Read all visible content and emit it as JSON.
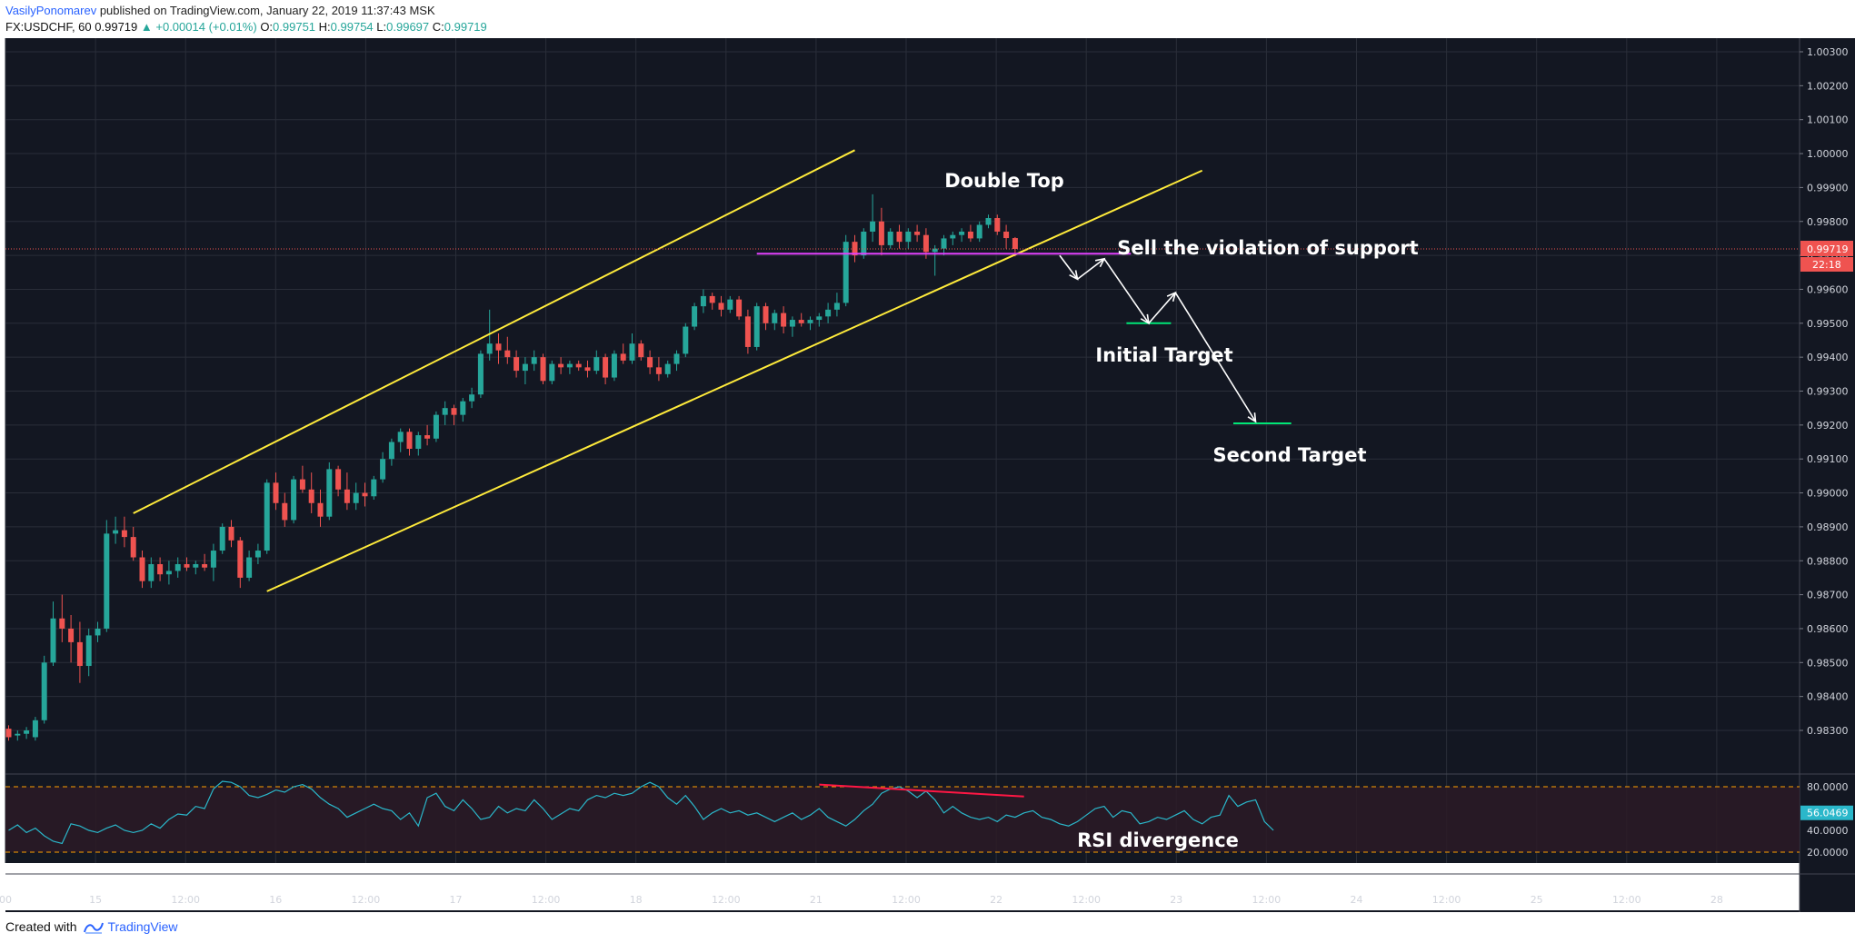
{
  "header": {
    "author": "VasilyPonomarev",
    "published": "published on TradingView.com, January 22, 2019 11:37:43 MSK",
    "symbol": "FX:USDCHF, 60",
    "last": "0.99719",
    "change": "▲ +0.00014 (+0.01%)",
    "o_label": "O:",
    "o_value": "0.99751",
    "h_label": "H:",
    "h_value": "0.99754",
    "l_label": "L:",
    "l_value": "0.99697",
    "c_label": "C:",
    "c_value": "0.99719"
  },
  "footer": {
    "created_with": "Created with",
    "brand": "TradingView",
    "logo_icon": "tradingview-logo-icon"
  },
  "colors": {
    "background": "#131722",
    "grid": "#2a2e39",
    "up": "#26a69a",
    "down": "#ef5350",
    "channel": "#ffeb3b",
    "support": "#e040fb",
    "target": "#00e676",
    "arrow": "#ffffff",
    "rsi": "#2ab7ca",
    "rsi_band": "#2b1a26",
    "rsi_levels": "#ffa000",
    "divergence": "#ff1744"
  },
  "chart_data": {
    "type": "candlestick",
    "symbol": "FX:USDCHF, 60",
    "x_ticks": [
      "00",
      "15",
      "12:00",
      "16",
      "12:00",
      "17",
      "12:00",
      "18",
      "12:00",
      "21",
      "12:00",
      "22",
      "12:00",
      "23",
      "12:00",
      "24",
      "12:00",
      "25",
      "12:00",
      "28"
    ],
    "y_ticks": [
      "1.00300",
      "1.00200",
      "1.00100",
      "1.00000",
      "0.99900",
      "0.99800",
      "0.99700",
      "0.99600",
      "0.99500",
      "0.99400",
      "0.99300",
      "0.99200",
      "0.99100",
      "0.99000",
      "0.98900",
      "0.98800",
      "0.98700",
      "0.98600",
      "0.98500",
      "0.98400",
      "0.98300"
    ],
    "ylim": [
      0.9825,
      1.0033
    ],
    "price_label": "0.99719",
    "countdown_label": "22:18",
    "candles": [
      {
        "o": 0.98305,
        "h": 0.98315,
        "l": 0.9827,
        "c": 0.9828
      },
      {
        "o": 0.98285,
        "h": 0.983,
        "l": 0.9827,
        "c": 0.9829
      },
      {
        "o": 0.9829,
        "h": 0.9831,
        "l": 0.98275,
        "c": 0.983
      },
      {
        "o": 0.9828,
        "h": 0.9834,
        "l": 0.9827,
        "c": 0.9833
      },
      {
        "o": 0.9833,
        "h": 0.9852,
        "l": 0.9832,
        "c": 0.985
      },
      {
        "o": 0.985,
        "h": 0.9868,
        "l": 0.9849,
        "c": 0.9863
      },
      {
        "o": 0.9863,
        "h": 0.987,
        "l": 0.9856,
        "c": 0.986
      },
      {
        "o": 0.986,
        "h": 0.9864,
        "l": 0.985,
        "c": 0.9856
      },
      {
        "o": 0.9856,
        "h": 0.9862,
        "l": 0.9844,
        "c": 0.9849
      },
      {
        "o": 0.9849,
        "h": 0.986,
        "l": 0.9846,
        "c": 0.9858
      },
      {
        "o": 0.9858,
        "h": 0.9862,
        "l": 0.9856,
        "c": 0.986
      },
      {
        "o": 0.986,
        "h": 0.9892,
        "l": 0.9859,
        "c": 0.9888
      },
      {
        "o": 0.9888,
        "h": 0.9893,
        "l": 0.9885,
        "c": 0.9889
      },
      {
        "o": 0.9889,
        "h": 0.9893,
        "l": 0.9884,
        "c": 0.9887
      },
      {
        "o": 0.9887,
        "h": 0.989,
        "l": 0.988,
        "c": 0.9881
      },
      {
        "o": 0.9881,
        "h": 0.9883,
        "l": 0.9872,
        "c": 0.9874
      },
      {
        "o": 0.9874,
        "h": 0.9881,
        "l": 0.9872,
        "c": 0.9879
      },
      {
        "o": 0.9879,
        "h": 0.9881,
        "l": 0.9874,
        "c": 0.9876
      },
      {
        "o": 0.9876,
        "h": 0.988,
        "l": 0.9873,
        "c": 0.9877
      },
      {
        "o": 0.9877,
        "h": 0.9881,
        "l": 0.9875,
        "c": 0.9879
      },
      {
        "o": 0.9879,
        "h": 0.9881,
        "l": 0.9877,
        "c": 0.9878
      },
      {
        "o": 0.9878,
        "h": 0.988,
        "l": 0.9876,
        "c": 0.9879
      },
      {
        "o": 0.9879,
        "h": 0.9882,
        "l": 0.9877,
        "c": 0.9878
      },
      {
        "o": 0.9878,
        "h": 0.9885,
        "l": 0.9874,
        "c": 0.9883
      },
      {
        "o": 0.9883,
        "h": 0.9891,
        "l": 0.9882,
        "c": 0.989
      },
      {
        "o": 0.989,
        "h": 0.9892,
        "l": 0.9884,
        "c": 0.9886
      },
      {
        "o": 0.9886,
        "h": 0.9887,
        "l": 0.9872,
        "c": 0.9875
      },
      {
        "o": 0.9875,
        "h": 0.9883,
        "l": 0.9874,
        "c": 0.9881
      },
      {
        "o": 0.9881,
        "h": 0.9885,
        "l": 0.9879,
        "c": 0.9883
      },
      {
        "o": 0.9883,
        "h": 0.9904,
        "l": 0.9882,
        "c": 0.9903
      },
      {
        "o": 0.9903,
        "h": 0.9906,
        "l": 0.9895,
        "c": 0.9897
      },
      {
        "o": 0.9897,
        "h": 0.99,
        "l": 0.989,
        "c": 0.9892
      },
      {
        "o": 0.9892,
        "h": 0.9905,
        "l": 0.9891,
        "c": 0.9904
      },
      {
        "o": 0.9904,
        "h": 0.9908,
        "l": 0.99,
        "c": 0.9901
      },
      {
        "o": 0.9901,
        "h": 0.9906,
        "l": 0.9894,
        "c": 0.9897
      },
      {
        "o": 0.9897,
        "h": 0.9901,
        "l": 0.989,
        "c": 0.9893
      },
      {
        "o": 0.9893,
        "h": 0.9909,
        "l": 0.9892,
        "c": 0.9907
      },
      {
        "o": 0.9907,
        "h": 0.9908,
        "l": 0.9899,
        "c": 0.9901
      },
      {
        "o": 0.9901,
        "h": 0.9906,
        "l": 0.9895,
        "c": 0.9897
      },
      {
        "o": 0.9897,
        "h": 0.9903,
        "l": 0.9895,
        "c": 0.99
      },
      {
        "o": 0.99,
        "h": 0.9903,
        "l": 0.9896,
        "c": 0.9899
      },
      {
        "o": 0.9899,
        "h": 0.9905,
        "l": 0.9898,
        "c": 0.9904
      },
      {
        "o": 0.9904,
        "h": 0.9912,
        "l": 0.9903,
        "c": 0.991
      },
      {
        "o": 0.991,
        "h": 0.9916,
        "l": 0.9908,
        "c": 0.9915
      },
      {
        "o": 0.9915,
        "h": 0.9919,
        "l": 0.9912,
        "c": 0.9918
      },
      {
        "o": 0.9918,
        "h": 0.9919,
        "l": 0.9911,
        "c": 0.9913
      },
      {
        "o": 0.9913,
        "h": 0.9918,
        "l": 0.9911,
        "c": 0.9917
      },
      {
        "o": 0.9917,
        "h": 0.992,
        "l": 0.9914,
        "c": 0.9916
      },
      {
        "o": 0.9916,
        "h": 0.9924,
        "l": 0.9915,
        "c": 0.9923
      },
      {
        "o": 0.9923,
        "h": 0.9927,
        "l": 0.992,
        "c": 0.9925
      },
      {
        "o": 0.9925,
        "h": 0.9926,
        "l": 0.992,
        "c": 0.9923
      },
      {
        "o": 0.9923,
        "h": 0.9928,
        "l": 0.9921,
        "c": 0.9927
      },
      {
        "o": 0.9927,
        "h": 0.9931,
        "l": 0.9925,
        "c": 0.9929
      },
      {
        "o": 0.9929,
        "h": 0.9942,
        "l": 0.9928,
        "c": 0.9941
      },
      {
        "o": 0.9941,
        "h": 0.9954,
        "l": 0.9939,
        "c": 0.9944
      },
      {
        "o": 0.9944,
        "h": 0.9947,
        "l": 0.9938,
        "c": 0.9942
      },
      {
        "o": 0.9942,
        "h": 0.9946,
        "l": 0.9938,
        "c": 0.994
      },
      {
        "o": 0.994,
        "h": 0.9942,
        "l": 0.9934,
        "c": 0.9936
      },
      {
        "o": 0.9936,
        "h": 0.994,
        "l": 0.9932,
        "c": 0.9938
      },
      {
        "o": 0.9938,
        "h": 0.9942,
        "l": 0.9936,
        "c": 0.994
      },
      {
        "o": 0.994,
        "h": 0.9941,
        "l": 0.9932,
        "c": 0.9933
      },
      {
        "o": 0.9933,
        "h": 0.9939,
        "l": 0.9932,
        "c": 0.9938
      },
      {
        "o": 0.9938,
        "h": 0.994,
        "l": 0.9935,
        "c": 0.9937
      },
      {
        "o": 0.9937,
        "h": 0.9939,
        "l": 0.9935,
        "c": 0.9938
      },
      {
        "o": 0.9938,
        "h": 0.9939,
        "l": 0.9936,
        "c": 0.9937
      },
      {
        "o": 0.9937,
        "h": 0.9939,
        "l": 0.9934,
        "c": 0.9936
      },
      {
        "o": 0.9936,
        "h": 0.9942,
        "l": 0.9935,
        "c": 0.994
      },
      {
        "o": 0.994,
        "h": 0.9941,
        "l": 0.9932,
        "c": 0.9934
      },
      {
        "o": 0.9934,
        "h": 0.9942,
        "l": 0.9933,
        "c": 0.9941
      },
      {
        "o": 0.9941,
        "h": 0.9944,
        "l": 0.9938,
        "c": 0.9939
      },
      {
        "o": 0.9939,
        "h": 0.9947,
        "l": 0.9938,
        "c": 0.9944
      },
      {
        "o": 0.9944,
        "h": 0.9945,
        "l": 0.9939,
        "c": 0.994
      },
      {
        "o": 0.994,
        "h": 0.9942,
        "l": 0.9935,
        "c": 0.9937
      },
      {
        "o": 0.9937,
        "h": 0.994,
        "l": 0.9933,
        "c": 0.9935
      },
      {
        "o": 0.9935,
        "h": 0.9939,
        "l": 0.9934,
        "c": 0.9938
      },
      {
        "o": 0.9938,
        "h": 0.9942,
        "l": 0.9936,
        "c": 0.9941
      },
      {
        "o": 0.9941,
        "h": 0.995,
        "l": 0.994,
        "c": 0.9949
      },
      {
        "o": 0.9949,
        "h": 0.9956,
        "l": 0.9948,
        "c": 0.9955
      },
      {
        "o": 0.9955,
        "h": 0.996,
        "l": 0.9953,
        "c": 0.9958
      },
      {
        "o": 0.9958,
        "h": 0.9959,
        "l": 0.9954,
        "c": 0.9956
      },
      {
        "o": 0.9956,
        "h": 0.9958,
        "l": 0.9952,
        "c": 0.9954
      },
      {
        "o": 0.9954,
        "h": 0.9958,
        "l": 0.9953,
        "c": 0.9957
      },
      {
        "o": 0.9957,
        "h": 0.9958,
        "l": 0.9951,
        "c": 0.9952
      },
      {
        "o": 0.9952,
        "h": 0.9954,
        "l": 0.9941,
        "c": 0.9943
      },
      {
        "o": 0.9943,
        "h": 0.9956,
        "l": 0.9942,
        "c": 0.9955
      },
      {
        "o": 0.9955,
        "h": 0.9956,
        "l": 0.9948,
        "c": 0.995
      },
      {
        "o": 0.995,
        "h": 0.9954,
        "l": 0.9948,
        "c": 0.9953
      },
      {
        "o": 0.9953,
        "h": 0.9955,
        "l": 0.9947,
        "c": 0.9949
      },
      {
        "o": 0.9949,
        "h": 0.9952,
        "l": 0.9946,
        "c": 0.9951
      },
      {
        "o": 0.9951,
        "h": 0.9953,
        "l": 0.9949,
        "c": 0.995
      },
      {
        "o": 0.995,
        "h": 0.9952,
        "l": 0.9948,
        "c": 0.9951
      },
      {
        "o": 0.9951,
        "h": 0.9953,
        "l": 0.9949,
        "c": 0.9952
      },
      {
        "o": 0.9952,
        "h": 0.9956,
        "l": 0.995,
        "c": 0.9954
      },
      {
        "o": 0.9954,
        "h": 0.9959,
        "l": 0.9952,
        "c": 0.9956
      },
      {
        "o": 0.9956,
        "h": 0.9976,
        "l": 0.9955,
        "c": 0.9974
      },
      {
        "o": 0.9974,
        "h": 0.9976,
        "l": 0.9968,
        "c": 0.997
      },
      {
        "o": 0.997,
        "h": 0.9978,
        "l": 0.9969,
        "c": 0.9977
      },
      {
        "o": 0.9977,
        "h": 0.9988,
        "l": 0.9974,
        "c": 0.998
      },
      {
        "o": 0.998,
        "h": 0.9984,
        "l": 0.997,
        "c": 0.9973
      },
      {
        "o": 0.9973,
        "h": 0.9978,
        "l": 0.9972,
        "c": 0.9977
      },
      {
        "o": 0.9977,
        "h": 0.9979,
        "l": 0.9972,
        "c": 0.9974
      },
      {
        "o": 0.9974,
        "h": 0.9978,
        "l": 0.9972,
        "c": 0.9977
      },
      {
        "o": 0.9977,
        "h": 0.9979,
        "l": 0.9974,
        "c": 0.9976
      },
      {
        "o": 0.9976,
        "h": 0.9978,
        "l": 0.9969,
        "c": 0.9971
      },
      {
        "o": 0.9971,
        "h": 0.9973,
        "l": 0.9964,
        "c": 0.9972
      },
      {
        "o": 0.9972,
        "h": 0.9976,
        "l": 0.997,
        "c": 0.9975
      },
      {
        "o": 0.9975,
        "h": 0.9977,
        "l": 0.9973,
        "c": 0.9976
      },
      {
        "o": 0.9976,
        "h": 0.9978,
        "l": 0.9974,
        "c": 0.9977
      },
      {
        "o": 0.9977,
        "h": 0.9979,
        "l": 0.9974,
        "c": 0.9975
      },
      {
        "o": 0.9975,
        "h": 0.998,
        "l": 0.9974,
        "c": 0.9979
      },
      {
        "o": 0.9979,
        "h": 0.9982,
        "l": 0.9978,
        "c": 0.9981
      },
      {
        "o": 0.9981,
        "h": 0.9982,
        "l": 0.9976,
        "c": 0.9977
      },
      {
        "o": 0.9977,
        "h": 0.9979,
        "l": 0.9972,
        "c": 0.99751
      },
      {
        "o": 0.99751,
        "h": 0.99754,
        "l": 0.99697,
        "c": 0.99719
      }
    ],
    "channel_upper": [
      {
        "i": 14,
        "y": 0.9894
      },
      {
        "i": 95,
        "y": 1.0001
      }
    ],
    "channel_lower": [
      {
        "i": 29,
        "y": 0.9871
      },
      {
        "i": 134,
        "y": 0.9995
      }
    ],
    "support_level": 0.99705,
    "price_line": 0.99719,
    "projection_path": [
      {
        "i": 118,
        "y": 0.997
      },
      {
        "i": 120,
        "y": 0.9963
      },
      {
        "i": 123,
        "y": 0.9969
      },
      {
        "i": 128,
        "y": 0.995
      },
      {
        "i": 131,
        "y": 0.9959
      },
      {
        "i": 140,
        "y": 0.9921
      }
    ],
    "initial_target": {
      "y": 0.995,
      "from_i": 125.5,
      "to_i": 130.5
    },
    "second_target": {
      "y": 0.99205,
      "from_i": 137.5,
      "to_i": 144
    },
    "annotations": {
      "double_top": "Double Top",
      "sell": "Sell the violation of support",
      "initial_target": "Initial Target",
      "second_target": "Second Target",
      "rsi_divergence": "RSI divergence"
    },
    "rsi": {
      "ticks": [
        "80.0000",
        "40.0000",
        "20.0000"
      ],
      "current_label": "56.0469",
      "levels": [
        80,
        20
      ],
      "ylim": [
        10,
        90
      ],
      "values": [
        40,
        45,
        38,
        42,
        35,
        30,
        28,
        46,
        44,
        40,
        38,
        42,
        45,
        40,
        38,
        40,
        46,
        42,
        50,
        55,
        54,
        62,
        60,
        78,
        85,
        84,
        80,
        72,
        70,
        73,
        77,
        75,
        80,
        82,
        78,
        70,
        64,
        60,
        52,
        56,
        60,
        64,
        60,
        58,
        50,
        56,
        44,
        70,
        74,
        62,
        58,
        68,
        60,
        50,
        52,
        62,
        56,
        60,
        58,
        68,
        60,
        50,
        55,
        60,
        58,
        68,
        72,
        70,
        74,
        72,
        74,
        80,
        84,
        80,
        70,
        64,
        72,
        62,
        50,
        56,
        60,
        56,
        58,
        54,
        56,
        52,
        48,
        52,
        56,
        50,
        54,
        60,
        52,
        48,
        44,
        50,
        58,
        64,
        74,
        78,
        80,
        76,
        70,
        76,
        68,
        56,
        62,
        56,
        52,
        50,
        52,
        48,
        54,
        52,
        56,
        58,
        52,
        50,
        46,
        44,
        48,
        54,
        60,
        62,
        52,
        58,
        56,
        46,
        48,
        52,
        50,
        54,
        58,
        50,
        46,
        52,
        54,
        72,
        62,
        66,
        68,
        48,
        40
      ]
    },
    "divergence_line": [
      {
        "i": 91,
        "v": 82
      },
      {
        "i": 114,
        "v": 71
      }
    ]
  }
}
